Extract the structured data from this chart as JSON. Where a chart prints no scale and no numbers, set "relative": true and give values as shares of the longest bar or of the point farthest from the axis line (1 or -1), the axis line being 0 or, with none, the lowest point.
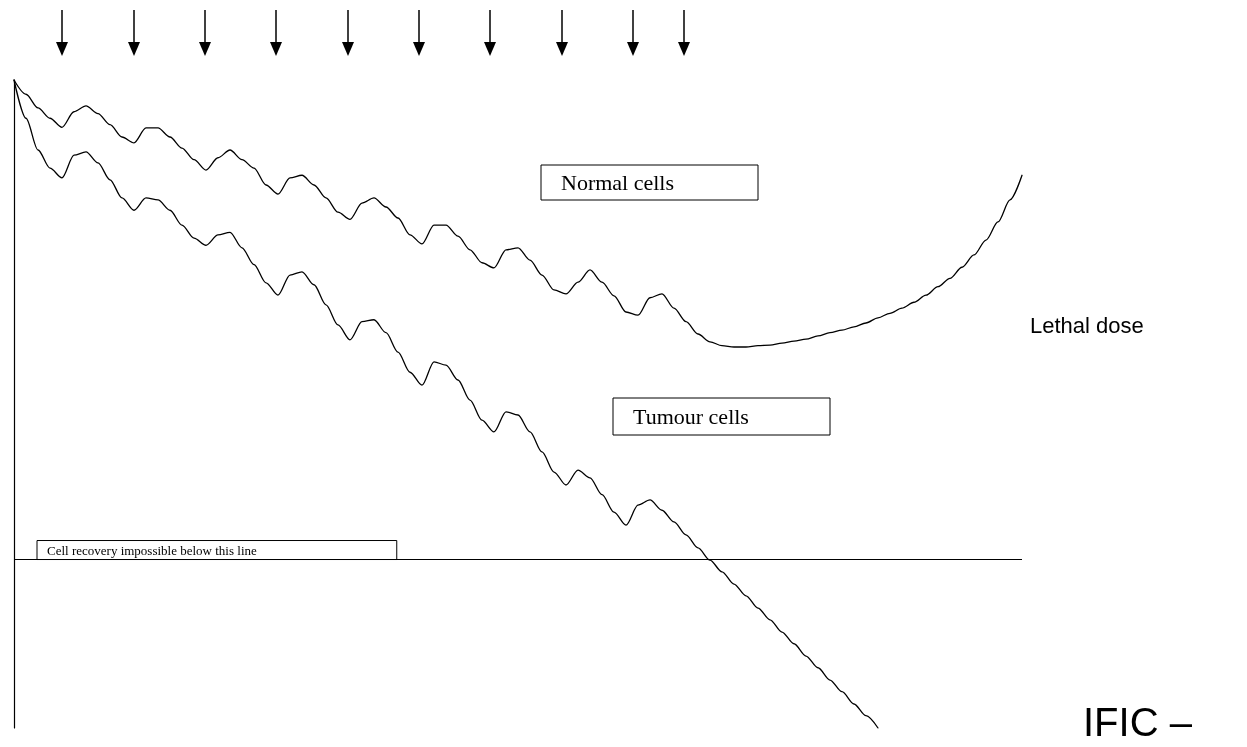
{
  "chart_data": {
    "type": "line",
    "relative": true,
    "legend": false,
    "grid": false,
    "marker": "none",
    "line_style": "solid",
    "categories": [
      null,
      null,
      null,
      null,
      null,
      null,
      null,
      null,
      null,
      null,
      null,
      null,
      null,
      null,
      null,
      null,
      null,
      null,
      null,
      null,
      null,
      null,
      null,
      null,
      null,
      null,
      null,
      null,
      null,
      null,
      null,
      null,
      null,
      null,
      null,
      null,
      null,
      null,
      null,
      null,
      null,
      null,
      null,
      null,
      null,
      null,
      null,
      null,
      null,
      null,
      null,
      null,
      null,
      null,
      null,
      null,
      null,
      null,
      null,
      null,
      null,
      null,
      null,
      null,
      null,
      null,
      null,
      null,
      null,
      null,
      null,
      null,
      null,
      null,
      null,
      null,
      null,
      null,
      null,
      null,
      null,
      null,
      null,
      null,
      null
    ],
    "series": [
      {
        "name": "Normal cells",
        "color": "#000000",
        "values": [
          1,
          0.978,
          0.957,
          0.941,
          0.927,
          0.951,
          0.96,
          0.948,
          0.931,
          0.912,
          0.903,
          0.926,
          0.926,
          0.912,
          0.895,
          0.877,
          0.861,
          0.88,
          0.892,
          0.877,
          0.864,
          0.838,
          0.824,
          0.849,
          0.853,
          0.838,
          0.818,
          0.796,
          0.785,
          0.81,
          0.818,
          0.804,
          0.787,
          0.761,
          0.747,
          0.776,
          0.776,
          0.759,
          0.738,
          0.718,
          0.71,
          0.738,
          0.741,
          0.722,
          0.699,
          0.676,
          0.67,
          0.688,
          0.707,
          0.688,
          0.667,
          0.642,
          0.637,
          0.664,
          0.67,
          0.648,
          0.627,
          0.608,
          0.596,
          0.59,
          0.588,
          0.588,
          0.59,
          0.591,
          0.594,
          0.597,
          0.6,
          0.605,
          0.61,
          0.614,
          0.619,
          0.625,
          0.633,
          0.64,
          0.648,
          0.657,
          0.668,
          0.681,
          0.694,
          0.711,
          0.73,
          0.753,
          0.781,
          0.815,
          0.853
        ]
      },
      {
        "name": "Tumour cells",
        "color": "#000000",
        "values": [
          1,
          0.941,
          0.892,
          0.864,
          0.849,
          0.884,
          0.889,
          0.872,
          0.846,
          0.818,
          0.799,
          0.818,
          0.815,
          0.799,
          0.776,
          0.756,
          0.745,
          0.761,
          0.765,
          0.741,
          0.715,
          0.687,
          0.668,
          0.699,
          0.704,
          0.684,
          0.653,
          0.622,
          0.599,
          0.627,
          0.63,
          0.61,
          0.58,
          0.549,
          0.529,
          0.565,
          0.56,
          0.537,
          0.506,
          0.475,
          0.457,
          0.488,
          0.483,
          0.457,
          0.426,
          0.395,
          0.375,
          0.398,
          0.386,
          0.36,
          0.333,
          0.313,
          0.344,
          0.352,
          0.336,
          0.318,
          0.298,
          0.278,
          0.259,
          0.241,
          0.222,
          0.204,
          0.185,
          0.167,
          0.148,
          0.13,
          0.111,
          0.093,
          0.074,
          0.056,
          0.037,
          0.019,
          0,
          null,
          null,
          null,
          null,
          null,
          null,
          null,
          null,
          null,
          null,
          null,
          null
        ]
      }
    ],
    "ref_lines": [
      {
        "axis": "y",
        "value": 0.262,
        "label": "Cell recovery impossible below this line",
        "color": "#000000"
      }
    ],
    "annotations": [
      "Lethal dose",
      "IFIC –"
    ]
  }
}
